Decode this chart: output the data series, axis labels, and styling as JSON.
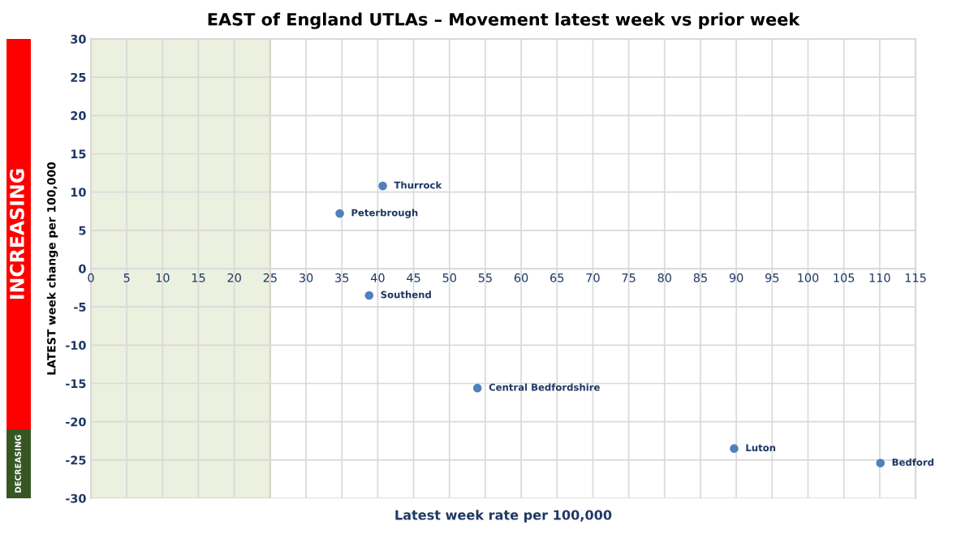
{
  "chart_data": {
    "type": "scatter",
    "title": "EAST of England UTLAs – Movement latest week vs prior week",
    "xlabel": "Latest week rate per 100,000",
    "ylabel": "LATEST week change per 100,000",
    "x": [
      40.7,
      34.7,
      38.8,
      53.9,
      89.7,
      110.1
    ],
    "series": [
      {
        "color": "#4f81bd",
        "values": [
          10.8,
          7.2,
          -3.5,
          -15.6,
          -23.5,
          -25.4
        ]
      }
    ],
    "marker": "circle",
    "xlim": [
      0,
      115
    ],
    "xticks": [
      0,
      5,
      10,
      15,
      20,
      25,
      30,
      35,
      40,
      45,
      50,
      55,
      60,
      65,
      70,
      75,
      80,
      85,
      90,
      95,
      100,
      105,
      110,
      115
    ],
    "ylim": [
      -30,
      30
    ],
    "yticks": [
      -30,
      -25,
      -20,
      -15,
      -10,
      -5,
      0,
      5,
      10,
      15,
      20,
      25,
      30
    ],
    "grid": true,
    "legend": false,
    "bands": [
      {
        "axis": "x",
        "from": 0,
        "to": 25,
        "color": "#ebf1de"
      }
    ],
    "annotations": [
      {
        "text": "Thurrock",
        "x": 40.7,
        "y": 10.8
      },
      {
        "text": "Peterbrough",
        "x": 34.7,
        "y": 7.2
      },
      {
        "text": "Southend",
        "x": 38.8,
        "y": -3.5
      },
      {
        "text": "Central Bedfordshire",
        "x": 53.9,
        "y": -15.6
      },
      {
        "text": "Luton",
        "x": 89.7,
        "y": -23.5
      },
      {
        "text": "Bedford",
        "x": 110.1,
        "y": -25.4
      },
      "INCREASING",
      "DECREASING"
    ]
  }
}
